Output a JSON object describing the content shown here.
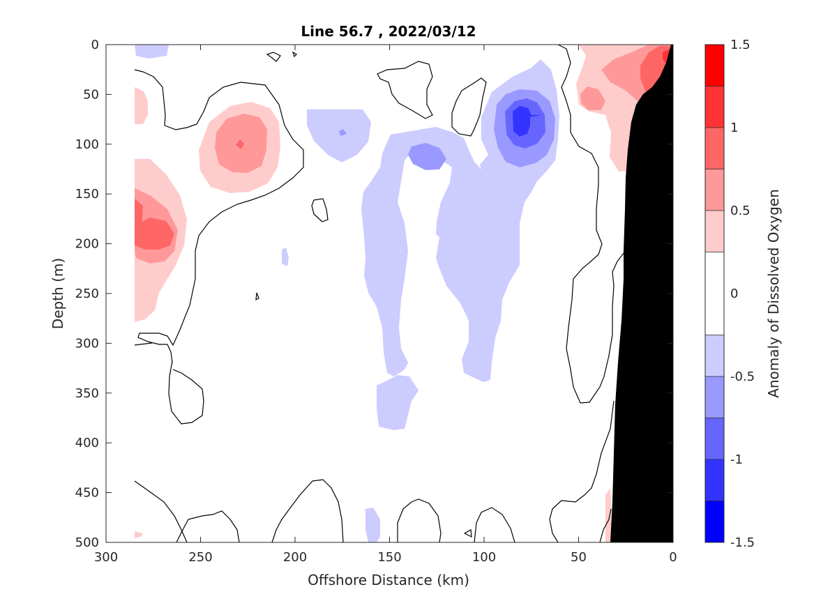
{
  "chart_data": {
    "type": "heatmap",
    "title": "Line 56.7 , 2022/03/12",
    "xlabel": "Offshore Distance (km)",
    "ylabel": "Depth (m)",
    "xlim": [
      300,
      0
    ],
    "ylim": [
      500,
      0
    ],
    "x_reversed": true,
    "y_reversed": true,
    "xticks": [
      "300",
      "250",
      "200",
      "150",
      "100",
      "50",
      "0"
    ],
    "yticks": [
      "0",
      "50",
      "100",
      "150",
      "200",
      "250",
      "300",
      "350",
      "400",
      "450",
      "500"
    ],
    "colorbar": {
      "label": "Anomaly of Dissolved Oxygen",
      "ticks": [
        "1.5",
        "1",
        "0.5",
        "0",
        "-0.5",
        "-1",
        "-1.5"
      ],
      "levels": [
        -1.5,
        -1.25,
        -1.0,
        -0.75,
        -0.5,
        -0.25,
        0.25,
        0.5,
        0.75,
        1.0,
        1.25,
        1.5
      ],
      "colors": [
        "#0000ff",
        "#3333ff",
        "#6666ff",
        "#9999ff",
        "#ccccff",
        "#ffffff",
        "#ffcccc",
        "#ff9999",
        "#ff6666",
        "#ff3333",
        "#ff0000"
      ]
    },
    "features": [
      {
        "name": "positive anomaly",
        "x": 228,
        "y": 100,
        "value": 0.9
      },
      {
        "name": "positive anomaly",
        "x": 278,
        "y": 175,
        "value": 1.0
      },
      {
        "name": "positive anomaly",
        "x": 10,
        "y": 15,
        "value": 1.3
      },
      {
        "name": "negative anomaly",
        "x": 78,
        "y": 75,
        "value": -1.1
      },
      {
        "name": "negative anomaly",
        "x": 127,
        "y": 110,
        "value": -0.7
      },
      {
        "name": "bathymetry",
        "x": 10,
        "y": 300,
        "value": null
      }
    ]
  }
}
